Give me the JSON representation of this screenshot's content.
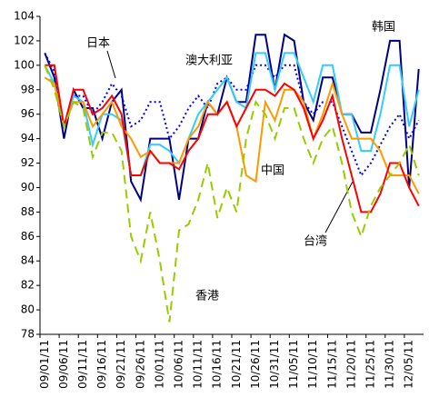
{
  "chart_data": {
    "type": "line",
    "categories": [
      "09/01/11",
      null,
      "09/06/11",
      null,
      "09/11/11",
      null,
      "09/16/11",
      null,
      "09/21/11",
      null,
      "09/26/11",
      null,
      "10/01/11",
      null,
      "10/06/11",
      null,
      "10/11/11",
      null,
      "10/16/11",
      null,
      "10/21/11",
      null,
      "10/26/11",
      null,
      "10/31/11",
      null,
      "11/05/11",
      null,
      "11/10/11",
      null,
      "11/15/11",
      null,
      "11/20/11",
      null,
      "11/25/11",
      null,
      "11/30/11",
      null,
      "12/05/11",
      null
    ],
    "ylim": [
      78,
      104
    ],
    "yticks": [
      78,
      80,
      82,
      84,
      86,
      88,
      90,
      92,
      94,
      96,
      98,
      100,
      102,
      104
    ],
    "series": [
      {
        "name": "韩国",
        "color": "#000080",
        "dash": "none",
        "values": [
          101,
          99,
          94,
          98,
          96.5,
          96.5,
          94,
          97,
          98,
          90.5,
          89,
          94,
          94,
          94,
          89,
          94,
          94,
          97,
          96,
          99,
          97,
          97,
          102.5,
          102.5,
          98,
          102.5,
          102,
          97,
          95.5,
          99,
          99,
          96,
          96,
          94.5,
          94.5,
          98,
          102,
          102,
          90,
          99.7
        ]
      },
      {
        "name": "日本",
        "color": "#0000ff",
        "dash": "2,3",
        "values": [
          101,
          99.5,
          95,
          97.5,
          97.5,
          96,
          97,
          98.5,
          97.5,
          95,
          95.5,
          97,
          97,
          94,
          95,
          96.5,
          97.5,
          96.5,
          98.5,
          99,
          98,
          98,
          100,
          100,
          99,
          100,
          100,
          97,
          96,
          97,
          97,
          95,
          93,
          91,
          92,
          93.5,
          95,
          96,
          94,
          95.5
        ]
      },
      {
        "name": "澳大利亚",
        "color": "#33ccff",
        "dash": "none",
        "values": [
          100,
          98.5,
          95,
          97.5,
          97,
          93.5,
          96,
          96,
          95.5,
          91,
          91,
          93.5,
          93.5,
          93,
          92,
          94,
          96,
          97,
          98,
          99,
          97,
          96.5,
          101,
          101,
          98,
          101,
          101,
          99,
          97,
          100,
          100,
          96,
          96,
          93,
          93,
          96,
          100,
          100,
          95,
          98
        ]
      },
      {
        "name": "中国",
        "color": "#ff9900",
        "dash": "none",
        "values": [
          99,
          98.5,
          95,
          97,
          97,
          95,
          96,
          97,
          95,
          94,
          92.5,
          93,
          92,
          92,
          92,
          94,
          95,
          97,
          96,
          97,
          95,
          91,
          90.5,
          97,
          95.5,
          98,
          98,
          97,
          94,
          96,
          98.5,
          96,
          94,
          94,
          94,
          93,
          91,
          91,
          91,
          89.5
        ]
      },
      {
        "name": "台湾",
        "color": "#ff0000",
        "dash": "none",
        "values": [
          100,
          100,
          95,
          98,
          98,
          96,
          96.5,
          97.5,
          96,
          91,
          91,
          93,
          92,
          92,
          91.5,
          93,
          94,
          96,
          96,
          97,
          95,
          96.5,
          98,
          98,
          97.5,
          98.5,
          98,
          96.5,
          94,
          95.5,
          97.5,
          94,
          91,
          88,
          88,
          89.5,
          92,
          92,
          90,
          88.5
        ]
      },
      {
        "name": "香港",
        "color": "#99cc00",
        "dash": "10,6",
        "values": [
          100,
          98,
          95,
          97,
          96.5,
          92.5,
          94.5,
          94.5,
          93,
          86,
          84,
          88,
          84,
          79,
          86.5,
          87,
          89,
          92,
          87.5,
          90,
          88,
          94,
          97,
          96,
          94,
          96.5,
          96.5,
          94,
          92,
          94,
          95,
          92,
          88,
          86,
          88.5,
          90,
          91,
          92,
          93.5,
          91
        ]
      }
    ]
  }
}
